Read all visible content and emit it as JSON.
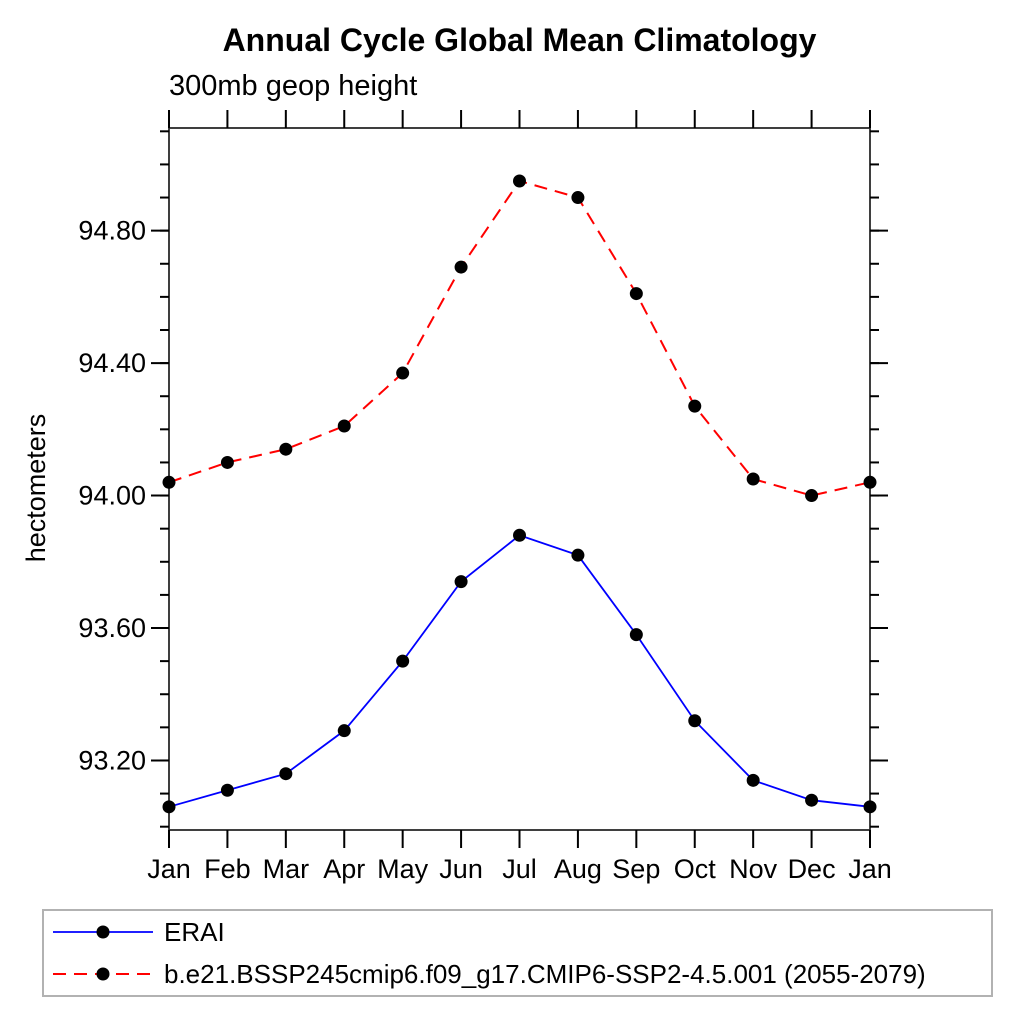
{
  "chart_data": {
    "type": "line",
    "title": "Annual Cycle Global Mean Climatology",
    "subtitle": "300mb geop height",
    "ylabel": "hectometers",
    "xlabel": "",
    "categories": [
      "Jan",
      "Feb",
      "Mar",
      "Apr",
      "May",
      "Jun",
      "Jul",
      "Aug",
      "Sep",
      "Oct",
      "Nov",
      "Dec",
      "Jan"
    ],
    "series": [
      {
        "name": "ERAI",
        "color": "#0000ff",
        "line_style": "solid",
        "marker": "filled-circle",
        "values": [
          93.06,
          93.11,
          93.16,
          93.29,
          93.5,
          93.74,
          93.88,
          93.82,
          93.58,
          93.32,
          93.14,
          93.08,
          93.06
        ]
      },
      {
        "name": "b.e21.BSSP245cmip6.f09_g17.CMIP6-SSP2-4.5.001 (2055-2079)",
        "color": "#ff0000",
        "line_style": "dashed",
        "marker": "filled-circle",
        "values": [
          94.04,
          94.1,
          94.14,
          94.21,
          94.37,
          94.69,
          94.95,
          94.9,
          94.61,
          94.27,
          94.05,
          94.0,
          94.04
        ]
      }
    ],
    "marker_color": "#000000",
    "ylim": [
      92.99,
      95.11
    ],
    "yticks_major": {
      "values": [
        93.2,
        93.6,
        94.0,
        94.4,
        94.8
      ],
      "labels": [
        "93.20",
        "93.60",
        "94.00",
        "94.40",
        "94.80"
      ]
    },
    "ytick_minor_step": 0.1,
    "grid": false,
    "legend_position": "bottom"
  }
}
